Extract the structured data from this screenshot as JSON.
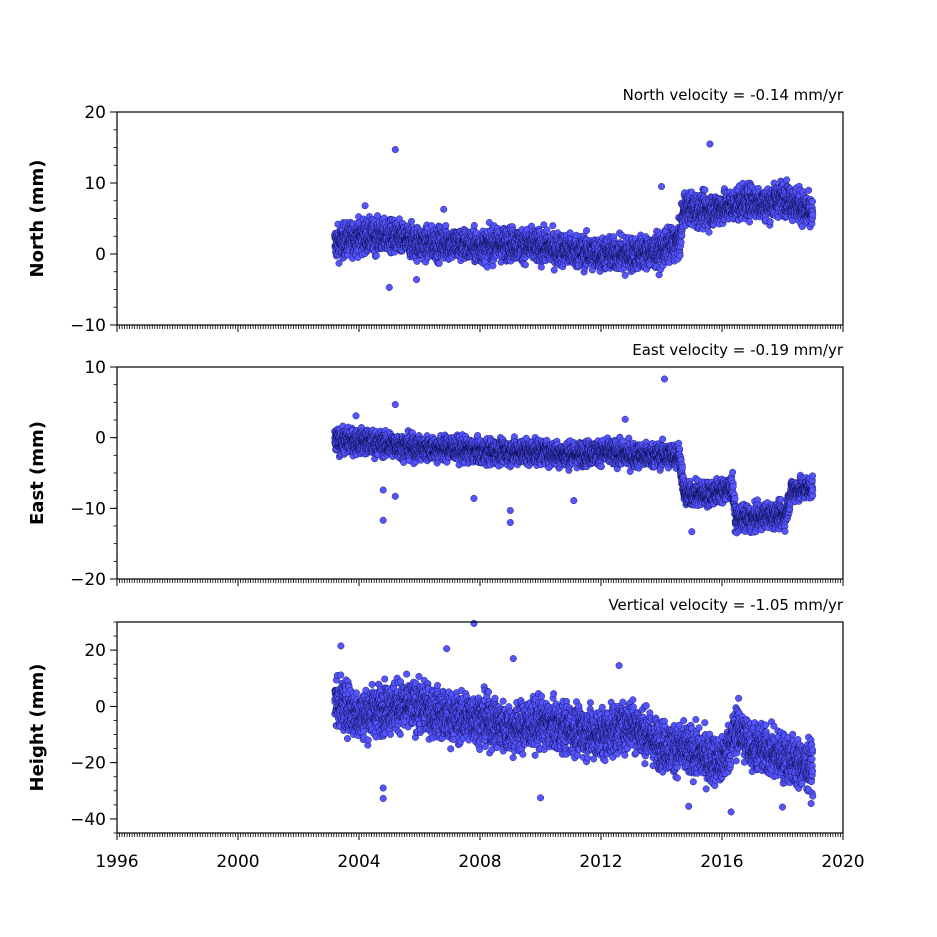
{
  "chart_data": [
    {
      "type": "scatter",
      "annotation": "North velocity = -0.14 mm/yr",
      "ylabel": "North (mm)",
      "xlim": [
        1996,
        2020
      ],
      "ylim": [
        -10,
        20
      ],
      "yticks": [
        -10,
        0,
        10,
        20
      ],
      "point_color": "#5555ff",
      "trend": [
        [
          2003.2,
          1.5
        ],
        [
          2004.0,
          2.5
        ],
        [
          2005.0,
          2.5
        ],
        [
          2006.0,
          1.5
        ],
        [
          2007.0,
          1.5
        ],
        [
          2008.0,
          1.0
        ],
        [
          2009.0,
          1.5
        ],
        [
          2010.0,
          1.0
        ],
        [
          2011.0,
          0.5
        ],
        [
          2012.0,
          0.0
        ],
        [
          2013.0,
          0.0
        ],
        [
          2014.0,
          0.5
        ],
        [
          2014.6,
          2.0
        ],
        [
          2014.75,
          6.5
        ],
        [
          2015.5,
          6.0
        ],
        [
          2016.0,
          6.5
        ],
        [
          2016.5,
          7.0
        ],
        [
          2017.0,
          7.5
        ],
        [
          2017.5,
          7.0
        ],
        [
          2018.0,
          8.0
        ],
        [
          2018.5,
          7.0
        ],
        [
          2019.0,
          5.5
        ]
      ],
      "scatter": 1.6,
      "outliers": [
        [
          2005.2,
          14.7
        ],
        [
          2005.0,
          -4.7
        ],
        [
          2015.6,
          15.5
        ],
        [
          2014.0,
          9.5
        ],
        [
          2004.2,
          6.8
        ],
        [
          2006.8,
          6.3
        ],
        [
          2012.8,
          -3.0
        ],
        [
          2005.9,
          -3.6
        ]
      ]
    },
    {
      "type": "scatter",
      "annotation": "East velocity = -0.19 mm/yr",
      "ylabel": "East (mm)",
      "xlim": [
        1996,
        2020
      ],
      "ylim": [
        -20,
        10
      ],
      "yticks": [
        -20,
        -10,
        0,
        10
      ],
      "point_color": "#5555ff",
      "trend": [
        [
          2003.2,
          -0.5
        ],
        [
          2004.0,
          -0.5
        ],
        [
          2005.0,
          -1.0
        ],
        [
          2006.0,
          -1.5
        ],
        [
          2007.0,
          -1.5
        ],
        [
          2008.0,
          -2.0
        ],
        [
          2009.0,
          -2.0
        ],
        [
          2010.0,
          -2.0
        ],
        [
          2011.0,
          -2.5
        ],
        [
          2012.0,
          -2.0
        ],
        [
          2013.0,
          -2.5
        ],
        [
          2014.0,
          -2.5
        ],
        [
          2014.6,
          -2.5
        ],
        [
          2014.75,
          -8.0
        ],
        [
          2015.5,
          -8.0
        ],
        [
          2016.0,
          -7.5
        ],
        [
          2016.35,
          -7.0
        ],
        [
          2016.45,
          -11.5
        ],
        [
          2017.0,
          -11.5
        ],
        [
          2017.5,
          -11.0
        ],
        [
          2018.1,
          -11.0
        ],
        [
          2018.3,
          -7.5
        ],
        [
          2019.0,
          -7.0
        ]
      ],
      "scatter": 1.2,
      "outliers": [
        [
          2004.8,
          -11.7
        ],
        [
          2005.2,
          4.7
        ],
        [
          2014.1,
          8.3
        ],
        [
          2009.0,
          -10.3
        ],
        [
          2009.0,
          -12.0
        ],
        [
          2003.9,
          3.1
        ],
        [
          2015.0,
          -13.3
        ],
        [
          2012.8,
          2.6
        ],
        [
          2005.2,
          -8.3
        ],
        [
          2004.8,
          -7.4
        ],
        [
          2007.8,
          -8.6
        ],
        [
          2011.1,
          -8.9
        ]
      ]
    },
    {
      "type": "scatter",
      "annotation": "Vertical velocity = -1.05 mm/yr",
      "ylabel": "Height (mm)",
      "xlim": [
        1996,
        2020
      ],
      "ylim": [
        -45,
        30
      ],
      "yticks": [
        -40,
        -20,
        0,
        20
      ],
      "point_color": "#5555ff",
      "trend": [
        [
          2003.2,
          2.0
        ],
        [
          2004.0,
          -3.0
        ],
        [
          2005.0,
          0.0
        ],
        [
          2006.0,
          0.0
        ],
        [
          2007.0,
          -4.0
        ],
        [
          2008.0,
          -4.0
        ],
        [
          2009.0,
          -8.0
        ],
        [
          2010.0,
          -6.0
        ],
        [
          2011.0,
          -8.0
        ],
        [
          2012.0,
          -10.0
        ],
        [
          2013.0,
          -6.0
        ],
        [
          2014.0,
          -14.0
        ],
        [
          2015.0,
          -16.0
        ],
        [
          2016.0,
          -20.0
        ],
        [
          2016.5,
          -8.0
        ],
        [
          2017.0,
          -14.0
        ],
        [
          2018.0,
          -18.0
        ],
        [
          2019.0,
          -22.0
        ]
      ],
      "scatter": 6.0,
      "outliers": [
        [
          2007.8,
          29.5
        ],
        [
          2004.8,
          -32.7
        ],
        [
          2004.8,
          -29.0
        ],
        [
          2016.3,
          -37.5
        ],
        [
          2014.9,
          -35.5
        ],
        [
          2018.0,
          -35.8
        ],
        [
          2003.4,
          21.5
        ],
        [
          2006.9,
          20.5
        ],
        [
          2012.6,
          14.5
        ],
        [
          2009.1,
          17.0
        ],
        [
          2010.0,
          -32.5
        ]
      ]
    }
  ],
  "xaxis": {
    "tick_labels": [
      "1996",
      "2000",
      "2004",
      "2008",
      "2012",
      "2016",
      "2020"
    ],
    "major_step": 4
  }
}
